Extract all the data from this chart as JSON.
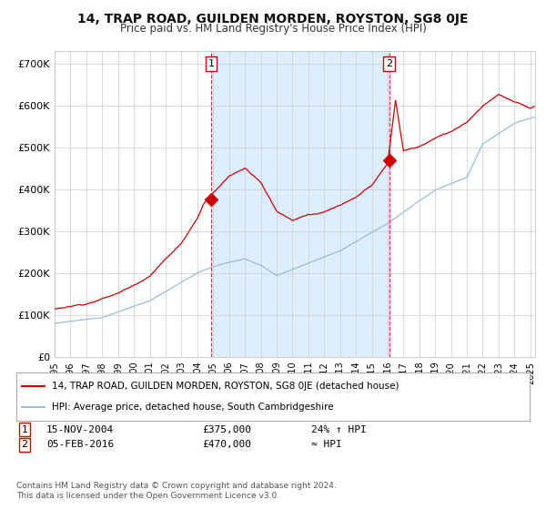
{
  "title": "14, TRAP ROAD, GUILDEN MORDEN, ROYSTON, SG8 0JE",
  "subtitle": "Price paid vs. HM Land Registry's House Price Index (HPI)",
  "ytick_values": [
    0,
    100000,
    200000,
    300000,
    400000,
    500000,
    600000,
    700000
  ],
  "ylim": [
    0,
    730000
  ],
  "xlim_start": 1995.0,
  "xlim_end": 2025.3,
  "red_line_color": "#cc0000",
  "blue_line_color": "#99bbdd",
  "shade_color": "#ddeeff",
  "vline_color": "#cc0000",
  "sale1_x": 2004.88,
  "sale1_y": 375000,
  "sale2_x": 2016.09,
  "sale2_y": 470000,
  "annotation1_label": "1",
  "annotation1_date": "15-NOV-2004",
  "annotation1_price": "£375,000",
  "annotation1_hpi": "24% ↑ HPI",
  "annotation2_label": "2",
  "annotation2_date": "05-FEB-2016",
  "annotation2_price": "£470,000",
  "annotation2_hpi": "≈ HPI",
  "legend_line1": "14, TRAP ROAD, GUILDEN MORDEN, ROYSTON, SG8 0JE (detached house)",
  "legend_line2": "HPI: Average price, detached house, South Cambridgeshire",
  "footer": "Contains HM Land Registry data © Crown copyright and database right 2024.\nThis data is licensed under the Open Government Licence v3.0.",
  "background_color": "#ffffff",
  "grid_color": "#cccccc"
}
